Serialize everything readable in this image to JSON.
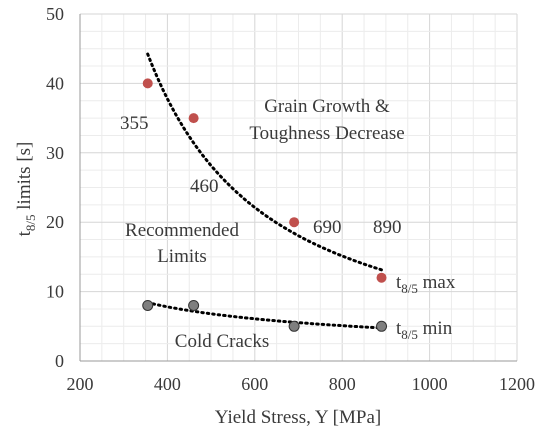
{
  "chart_data": {
    "type": "scatter",
    "xlabel": "Yield Stress, Y [MPa]",
    "ylabel": {
      "main": "t",
      "sub": "8/5",
      "rest": " limits [s]"
    },
    "xlim": [
      200,
      1200
    ],
    "ylim": [
      0,
      50
    ],
    "xticks": [
      "200",
      "400",
      "600",
      "800",
      "1000",
      "1200"
    ],
    "yticks": [
      "0",
      "10",
      "20",
      "30",
      "40",
      "50"
    ],
    "grid": true,
    "colors": {
      "max": "#c0504d",
      "min": "#7f7f7f",
      "trend": "#000000"
    },
    "series": [
      {
        "key": "max",
        "label_main": "t",
        "label_sub": "8/5",
        "label_rest": " max",
        "x": [
          355,
          460,
          690,
          890
        ],
        "y": [
          40,
          35,
          20,
          12
        ]
      },
      {
        "key": "min",
        "label_main": "t",
        "label_sub": "8/5",
        "label_rest": " min",
        "x": [
          355,
          460,
          690,
          890
        ],
        "y": [
          8,
          8,
          5,
          5
        ]
      }
    ],
    "point_labels": [
      "355",
      "460",
      "690",
      "890"
    ],
    "annotations": {
      "grain_growth": [
        "Grain Growth &",
        "Toughness Decrease"
      ],
      "recommended": [
        "Recommended",
        "Limits"
      ],
      "cold_cracks": "Cold Cracks"
    }
  }
}
